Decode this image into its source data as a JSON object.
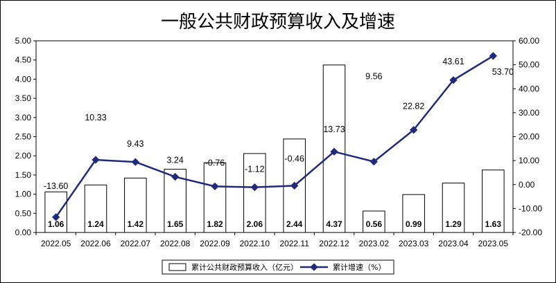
{
  "chart_data": {
    "type": "bar+line",
    "title": "一般公共财政预算收入及增速",
    "categories": [
      "2022.05",
      "2022.06",
      "2022.07",
      "2022.08",
      "2022.09",
      "2022.10",
      "2022.11",
      "2022.12",
      "2023.02",
      "2023.03",
      "2023.04",
      "2023.05"
    ],
    "series": [
      {
        "name": "累计公共财政预算收入（亿元）",
        "type": "bar",
        "axis": "left",
        "values": [
          1.06,
          1.24,
          1.42,
          1.65,
          1.82,
          2.06,
          2.44,
          4.37,
          0.56,
          0.99,
          1.29,
          1.63
        ],
        "labels": [
          "1.06",
          "1.24",
          "1.42",
          "1.65",
          "1.82",
          "2.06",
          "2.44",
          "4.37",
          "0.56",
          "0.99",
          "1.29",
          "1.63"
        ]
      },
      {
        "name": "累计增速（%）",
        "type": "line",
        "axis": "right",
        "values": [
          -13.6,
          10.33,
          9.43,
          3.24,
          -0.76,
          -1.12,
          -0.46,
          13.73,
          9.56,
          22.82,
          43.61,
          53.7
        ],
        "labels": [
          "-13.60",
          "10.33",
          "9.43",
          "3.24",
          "-0.76",
          "-1.12",
          "-0.46",
          "13.73",
          "9.56",
          "22.82",
          "43.61",
          "53.70"
        ],
        "color": "#1f2a7a"
      }
    ],
    "y_left": {
      "min": 0,
      "max": 5,
      "ticks": [
        "0.00",
        "0.50",
        "1.00",
        "1.50",
        "2.00",
        "2.50",
        "3.00",
        "3.50",
        "4.00",
        "4.50",
        "5.00"
      ]
    },
    "y_right": {
      "min": -20,
      "max": 60,
      "ticks": [
        "-20.00",
        "-10.00",
        "0.00",
        "10.00",
        "20.00",
        "30.00",
        "40.00",
        "50.00",
        "60.00"
      ]
    },
    "grid": false,
    "legend_position": "bottom"
  }
}
